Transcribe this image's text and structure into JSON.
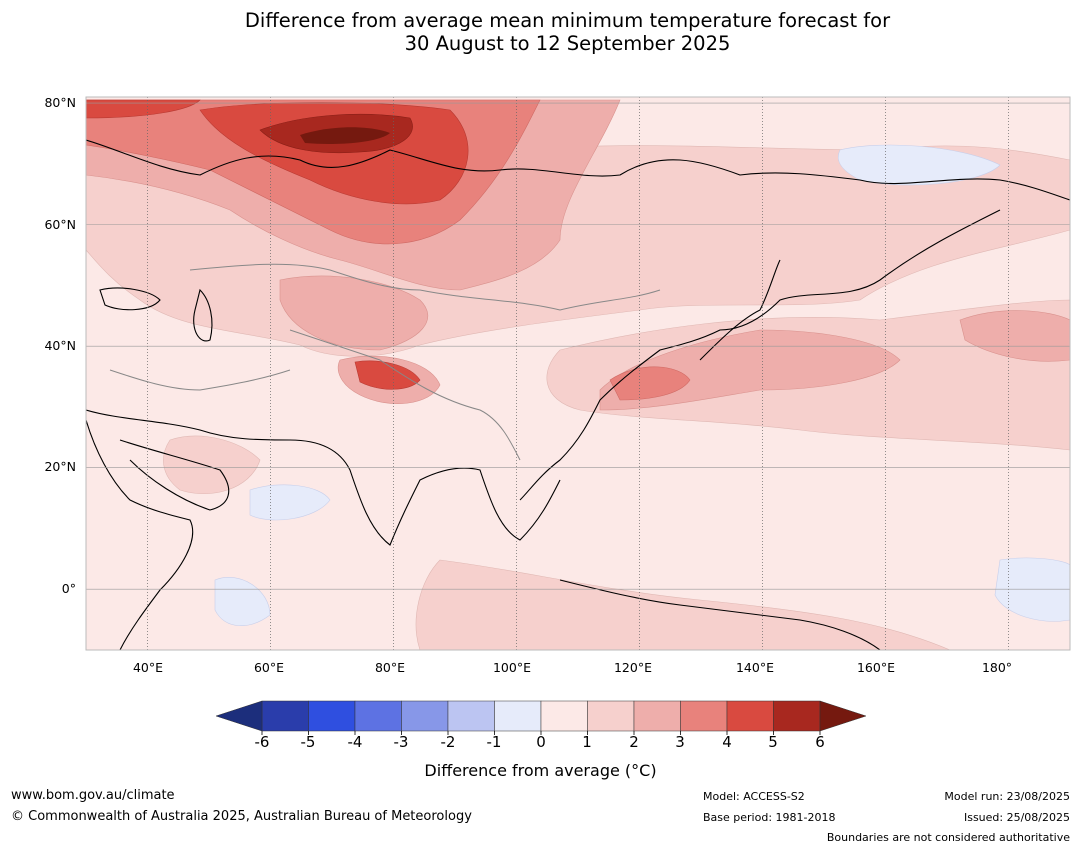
{
  "title": {
    "line1": "Difference from average mean minimum temperature forecast for",
    "line2": "30 August to 12 September 2025"
  },
  "map": {
    "lat_labels": [
      "80°N",
      "60°N",
      "40°N",
      "20°N",
      "0°"
    ],
    "lon_labels": [
      "40°E",
      "60°E",
      "80°E",
      "100°E",
      "120°E",
      "140°E",
      "160°E",
      "180°"
    ],
    "extent": {
      "lon_min": 30,
      "lon_max": 190,
      "lat_min": -10,
      "lat_max": 81
    }
  },
  "colorbar": {
    "ticks": [
      "-6",
      "-5",
      "-4",
      "-3",
      "-2",
      "-1",
      "0",
      "1",
      "2",
      "3",
      "4",
      "5",
      "6"
    ],
    "colors": [
      "#2a3dab",
      "#2f4fe0",
      "#5d72e3",
      "#8797e8",
      "#bcc5f2",
      "#e6ebfa",
      "#fce9e7",
      "#f6d0cd",
      "#eeaeab",
      "#e8827c",
      "#d94a40",
      "#a8281f"
    ],
    "below_color": "#1c2e7c",
    "above_color": "#75190f",
    "label": "Difference from average (°C)"
  },
  "footer": {
    "website": "www.bom.gov.au/climate",
    "copyright": "© Commonwealth of Australia 2025, Australian Bureau of Meteorology",
    "model": "Model: ACCESS-S2",
    "base_period": "Base period: 1981-2018",
    "model_run": "Model run: 23/08/2025",
    "issued": "Issued: 25/08/2025",
    "boundaries_note": "Boundaries are not considered authoritative"
  }
}
